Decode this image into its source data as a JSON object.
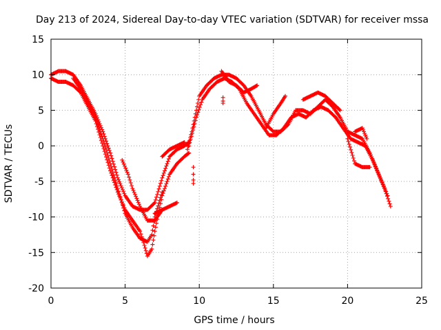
{
  "chart_data": {
    "type": "scatter",
    "title": "Day 213 of 2024, Sidereal Day-to-day VTEC variation (SDTVAR) for receiver mssa",
    "xlabel": "GPS time / hours",
    "ylabel": "SDTVAR / TECUs",
    "xlim": [
      0,
      25
    ],
    "ylim": [
      -20,
      15
    ],
    "xticks": [
      0,
      5,
      10,
      15,
      20,
      25
    ],
    "yticks": [
      -20,
      -15,
      -10,
      -5,
      0,
      5,
      10,
      15
    ],
    "grid": true,
    "marker": "+",
    "series": [
      {
        "name": "sdtvar",
        "color": "#ff0000",
        "traces": [
          [
            [
              0.0,
              10.0
            ],
            [
              0.5,
              10.5
            ],
            [
              1.0,
              10.5
            ],
            [
              1.5,
              10.0
            ],
            [
              2.0,
              8.5
            ],
            [
              2.5,
              6.5
            ],
            [
              3.0,
              4.5
            ],
            [
              3.5,
              2.0
            ],
            [
              4.0,
              -1.0
            ],
            [
              4.5,
              -4.5
            ],
            [
              5.0,
              -7.0
            ],
            [
              5.5,
              -8.5
            ],
            [
              6.0,
              -9.0
            ],
            [
              6.5,
              -9.0
            ],
            [
              7.0,
              -8.0
            ],
            [
              7.5,
              -4.5
            ],
            [
              8.0,
              -1.5
            ],
            [
              8.5,
              -0.5
            ],
            [
              9.0,
              0.0
            ],
            [
              9.3,
              0.5
            ]
          ],
          [
            [
              0.0,
              9.5
            ],
            [
              0.5,
              9.0
            ],
            [
              1.0,
              9.0
            ],
            [
              1.5,
              8.5
            ],
            [
              2.0,
              7.5
            ],
            [
              2.5,
              5.5
            ],
            [
              3.0,
              3.5
            ],
            [
              3.5,
              0.0
            ],
            [
              4.0,
              -3.5
            ],
            [
              4.5,
              -6.5
            ],
            [
              5.0,
              -9.0
            ],
            [
              5.5,
              -10.5
            ],
            [
              6.0,
              -12.0
            ],
            [
              6.3,
              -14.0
            ],
            [
              6.5,
              -15.5
            ],
            [
              6.8,
              -14.5
            ],
            [
              7.0,
              -12.0
            ],
            [
              7.5,
              -7.0
            ],
            [
              8.0,
              -4.0
            ],
            [
              8.5,
              -2.5
            ],
            [
              9.0,
              -1.5
            ],
            [
              9.3,
              -1.0
            ]
          ],
          [
            [
              1.5,
              9.5
            ],
            [
              2.0,
              8.0
            ],
            [
              2.5,
              6.0
            ],
            [
              3.0,
              4.0
            ],
            [
              3.5,
              1.0
            ],
            [
              4.0,
              -2.5
            ],
            [
              4.5,
              -6.0
            ],
            [
              5.0,
              -9.5
            ],
            [
              5.5,
              -11.5
            ],
            [
              6.0,
              -13.0
            ],
            [
              6.5,
              -13.5
            ],
            [
              6.8,
              -12.5
            ],
            [
              7.0,
              -10.0
            ],
            [
              7.5,
              -6.5
            ]
          ],
          [
            [
              4.8,
              -2.0
            ],
            [
              5.2,
              -4.0
            ],
            [
              5.5,
              -6.0
            ],
            [
              6.0,
              -8.5
            ],
            [
              6.5,
              -10.5
            ],
            [
              7.0,
              -10.5
            ],
            [
              7.5,
              -9.0
            ]
          ],
          [
            [
              9.2,
              -0.5
            ],
            [
              9.5,
              2.0
            ],
            [
              9.8,
              5.0
            ],
            [
              10.0,
              7.0
            ],
            [
              10.5,
              8.5
            ],
            [
              11.0,
              9.5
            ],
            [
              11.5,
              10.0
            ],
            [
              12.0,
              10.0
            ],
            [
              12.5,
              9.5
            ],
            [
              13.0,
              8.5
            ],
            [
              13.5,
              7.0
            ],
            [
              14.0,
              5.0
            ],
            [
              14.5,
              3.0
            ],
            [
              15.0,
              2.0
            ],
            [
              15.5,
              2.0
            ],
            [
              16.0,
              3.0
            ],
            [
              16.5,
              5.0
            ],
            [
              17.0,
              5.0
            ],
            [
              17.5,
              4.5
            ],
            [
              18.0,
              5.5
            ],
            [
              18.5,
              6.5
            ],
            [
              19.0,
              5.5
            ],
            [
              19.5,
              4.0
            ],
            [
              20.0,
              2.0
            ],
            [
              20.5,
              1.5
            ],
            [
              21.0,
              1.0
            ],
            [
              21.5,
              -1.0
            ],
            [
              22.0,
              -3.5
            ],
            [
              22.5,
              -6.0
            ],
            [
              22.9,
              -8.5
            ]
          ],
          [
            [
              9.3,
              0.0
            ],
            [
              9.8,
              4.0
            ],
            [
              10.2,
              6.5
            ],
            [
              10.7,
              8.0
            ],
            [
              11.2,
              9.0
            ],
            [
              11.7,
              9.5
            ],
            [
              12.2,
              9.0
            ],
            [
              12.7,
              8.0
            ],
            [
              13.2,
              6.0
            ],
            [
              13.7,
              4.5
            ],
            [
              14.2,
              3.0
            ],
            [
              14.7,
              1.5
            ],
            [
              15.2,
              1.5
            ],
            [
              15.7,
              2.5
            ],
            [
              16.2,
              4.0
            ],
            [
              16.7,
              4.5
            ],
            [
              17.2,
              4.0
            ],
            [
              17.7,
              5.0
            ],
            [
              18.2,
              5.5
            ],
            [
              18.7,
              5.0
            ],
            [
              19.2,
              4.0
            ],
            [
              19.7,
              2.5
            ],
            [
              20.2,
              1.0
            ],
            [
              20.7,
              0.5
            ],
            [
              21.2,
              0.0
            ],
            [
              21.7,
              -2.0
            ],
            [
              22.2,
              -4.5
            ],
            [
              22.7,
              -7.0
            ]
          ],
          [
            [
              11.5,
              10.5
            ],
            [
              12.0,
              9.0
            ],
            [
              12.5,
              8.5
            ],
            [
              13.0,
              7.5
            ],
            [
              13.5,
              8.0
            ],
            [
              13.9,
              8.5
            ]
          ],
          [
            [
              14.5,
              2.5
            ],
            [
              15.0,
              4.5
            ],
            [
              15.5,
              6.0
            ],
            [
              15.8,
              7.0
            ]
          ],
          [
            [
              17.0,
              6.5
            ],
            [
              17.5,
              7.0
            ],
            [
              18.0,
              7.5
            ],
            [
              18.5,
              7.0
            ],
            [
              19.0,
              6.0
            ],
            [
              19.5,
              5.0
            ]
          ],
          [
            [
              20.0,
              1.0
            ],
            [
              20.5,
              -2.5
            ],
            [
              21.0,
              -3.0
            ],
            [
              21.5,
              -3.0
            ]
          ],
          [
            [
              20.5,
              2.0
            ],
            [
              21.0,
              2.5
            ],
            [
              21.3,
              1.0
            ]
          ],
          [
            [
              7.0,
              -9.5
            ],
            [
              7.5,
              -9.0
            ],
            [
              8.0,
              -8.5
            ],
            [
              8.5,
              -8.0
            ]
          ],
          [
            [
              7.5,
              -1.5
            ],
            [
              8.0,
              -0.5
            ],
            [
              8.5,
              0.0
            ],
            [
              9.0,
              0.5
            ]
          ]
        ],
        "points": [
          [
            9.6,
            -3.0
          ],
          [
            9.6,
            -4.0
          ],
          [
            9.6,
            -4.8
          ],
          [
            9.6,
            -5.3
          ],
          [
            11.6,
            6.8
          ],
          [
            11.6,
            6.3
          ],
          [
            11.6,
            6.0
          ]
        ]
      }
    ]
  }
}
